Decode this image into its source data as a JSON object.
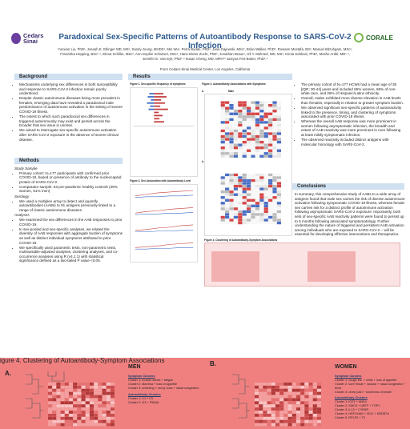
{
  "header": {
    "logo_left": "Cedars Sinai",
    "logo_right": "CORALE",
    "title": "Paradoxical Sex-Specific Patterns of Autoantibody Response to SARS-CoV-2 Infection",
    "authors_line1": "Yunxian Liu, PhD¹, Joseph E. Ebinger MD, MS¹, Sandy Joung, MHDS¹, Min Wu¹, Petra Budde, PhD², Jana Gajewski, MSc², Brian Walker, PhD³, Rowann Mostafa, BS³, Manuel Bitzuhgam, MSc²,",
    "authors_line2": "Franziska Hepping, BSc²˒⁴, Elena Schiller, MSc², Ann-Sophie Schubert, MSc², Hans-Dieter Zucht, PhD², Jonathan Braun¹, Gil Y. Melmed, MD, MS¹, Kimia Sobhani, PhD¹, Moshe Arditi, MD¹˒³,",
    "authors_line3": "Jennifer E. Van Eyk, PhD¹˒³ Susan Cheng, MD, MPH¹³ Justyna Fert-Bober, PhD¹˒³",
    "affiliation": "From Cedars-Sinai Medical Center, Los Angeles, California"
  },
  "background": {
    "heading": "Background",
    "bullets": [
      "Mechanisms underlying sex differences in both susceptibility and response to SARS-CoV-2 infection remain poorly understood.",
      "Despite classic autoimmune diseases being more prevalent in females, emerging data have revealed a paradoxical male predominance of autoimmune activation in the setting of severe COVID-19 illness.",
      "The extent to which such paradoxical sex differences in triggered autoimmunity may exist and persist across the broader that sex issue is unclear.",
      "We aimed to interrogate sex-specific autoimmune activation after SARS-CoV-2 exposure in the absence of severe clinical disease."
    ]
  },
  "methods": {
    "heading": "Methods",
    "study_sample_label": "Study Sample",
    "study_sample": [
      "Primary cohort: N=177 participants with confirmed prior COVID-19, based on presence of antibody to the nucleocapsid protein of SARS-CoV-2.",
      "Comparator sample: 53 pre-pandemic healthy controls (49% women, 51% men)"
    ],
    "serology_label": "Serology",
    "serology": [
      "We used a multiplex array to detect and quantify autoantibodies (AABs) to 91 antigens previously linked to a range of classic autoimmune diseases."
    ],
    "analyses_label": "Analyses",
    "analyses": [
      "We examined the sex differences in the AAB responses to prior COVID-19.",
      "In sex-pooled and sex-specific analyses, we related the diversity of AAB responses with aggregate burden of symptoms as well as distinct individual symptoms attributed to prior COVID-19.",
      "We specifically used parametric tests, non-parametric tests, multivariable-adjusted analyses, clustering analyses, and co-occurrence analyses using R (v4.1.1) with statistical significance defined as a two-tailed P value <0.05."
    ]
  },
  "results": {
    "heading": "Results",
    "fig1": "Figure 1. Sex-specific frequency of symptoms",
    "fig2": "Figure 2. Autoantibody Associations with Symptoms",
    "fig3": "Figure 3. Sex Association with Autoantibody Level",
    "fig4_small": "Figure 4. Clustering of Autoantibody-Symptom Associations",
    "panel_a": "a.",
    "panel_b": "b.",
    "male_label": "Male",
    "female_label": "Female",
    "bullets": [
      "The primary cohort of N=177 HCWs had a mean age of 35 [IQR: 30-44] years and included 65% women, 68% of non-white race, and 28% of Hispanic/Latinx ethnicity.",
      "Overall, males exhibited more diverse elevation in AAB levels than females, especially in relation to greater symptom burden.",
      "We observed significant sex-specific patterns of autoreactivity linked to the presence, timing, and clustering of symptoms associated with prior COVID-19 illness.",
      "Whereas the overall AAB response was more prominent in women following asymptomatic infection, the breadth and extent of AAB reactivity was more prominent in men following at least mildly symptomatic infection.",
      "The observed reactivity included distinct antigens with molecular homology with SARS-CoV-2."
    ]
  },
  "conclusions": {
    "heading": "Conclusions",
    "text": "In summary, this comprehensive study of AABs to a wide array of antigens found that male sex carries the risk of diverse autoimmune activation following symptomatic COVID-19 illness, whereas female sex carries risk for a distinct profile of autoimmune activation following asymptomatic SARS-CoV-2 exposure. Importantly, both sets of sex-specific AAB reactivity patterns were found to persist up to 6 months following associated symptomatology. Further understanding the nature of triggered and persistent AAB activation among individuals who are exposed to SARS-CoV-2 – will be essential for developing effective interventions and therapeutics."
  },
  "bottom": {
    "title": "igure 4. Clustering of Autoantibody-Symptom Associations",
    "panel_a": "A.",
    "panel_b": "B.",
    "men": {
      "label": "MEN",
      "sym_head": "Symptom Clusters",
      "sym": [
        "Cluster 1: muscle aches + fatigue",
        "Cluster 2: diarrhea + loss of appetite",
        "Cluster 3: sneezing + runny nose + nasal congestion"
      ],
      "aab_head": "Autoantibody Clusters",
      "aab": [
        "Cluster 1: C1 + F3",
        "Cluster 2: G3 + P56A8"
      ]
    },
    "women": {
      "label": "WOMEN",
      "sym_head": "Symptom Clusters",
      "sym": [
        "Cluster 1: cough etc. + chills + loss of appetite",
        "Cluster 2: sore throat + nausea + nasal congestion + fever",
        "Cluster 3: chest pain + shortness of breath"
      ],
      "aab_head": "Autoantibody Clusters",
      "aab": [
        "Cluster 1: ICE1 + ANK4",
        "Cluster 2: SMO3 + UBTF + TOP1",
        "Cluster 3: IL12 + CYBSR",
        "Cluster 4: HSF1/HA5 + ISG1 + KBDB7A",
        "Cluster 5: RPLP2 + T3"
      ]
    }
  }
}
